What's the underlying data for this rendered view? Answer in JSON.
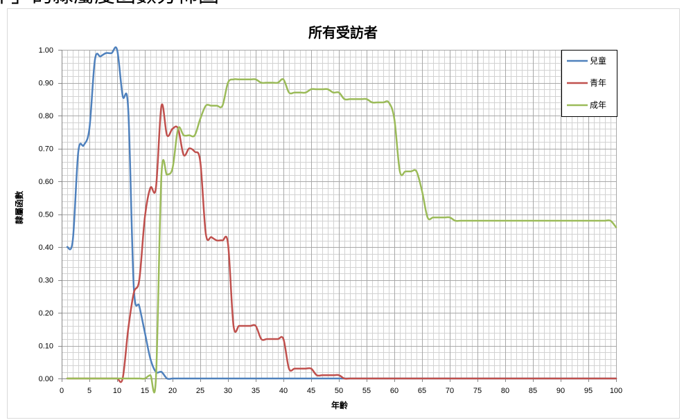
{
  "caption": "年」的隸屬度函數分佈圖",
  "chart_data": {
    "type": "line",
    "title": "所有受訪者",
    "xlabel": "年齡",
    "ylabel": "隸屬函數",
    "xlim": [
      0,
      100
    ],
    "ylim": [
      0,
      1
    ],
    "x_ticks": [
      "0",
      "5",
      "10",
      "15",
      "20",
      "25",
      "30",
      "35",
      "40",
      "45",
      "50",
      "55",
      "60",
      "65",
      "70",
      "75",
      "80",
      "85",
      "90",
      "95",
      "100"
    ],
    "y_ticks": [
      "0.00",
      "0.10",
      "0.20",
      "0.30",
      "0.40",
      "0.50",
      "0.60",
      "0.70",
      "0.80",
      "0.90",
      "1.00"
    ],
    "grid": true,
    "smooth": true,
    "legend": "top-right",
    "x": [
      1,
      2,
      3,
      4,
      5,
      6,
      7,
      8,
      9,
      10,
      11,
      12,
      13,
      14,
      15,
      16,
      17,
      18,
      19,
      20,
      21,
      22,
      23,
      24,
      25,
      26,
      27,
      28,
      29,
      30,
      31,
      32,
      33,
      34,
      35,
      36,
      37,
      38,
      39,
      40,
      41,
      42,
      43,
      44,
      45,
      46,
      47,
      48,
      49,
      50,
      51,
      52,
      53,
      54,
      55,
      56,
      57,
      58,
      59,
      60,
      61,
      62,
      63,
      64,
      65,
      66,
      67,
      68,
      69,
      70,
      71,
      72,
      73,
      74,
      75,
      76,
      77,
      78,
      79,
      80,
      81,
      82,
      83,
      84,
      85,
      86,
      87,
      88,
      89,
      90,
      91,
      92,
      93,
      94,
      95,
      96,
      97,
      98,
      99,
      100
    ],
    "series": [
      {
        "name": "兒童",
        "color": "#4F81BD",
        "values": [
          0.4,
          0.42,
          0.69,
          0.71,
          0.76,
          0.97,
          0.98,
          0.99,
          0.99,
          1.0,
          0.86,
          0.82,
          0.28,
          0.22,
          0.14,
          0.06,
          0.02,
          0.02,
          0.0,
          0.0,
          0,
          0,
          0,
          0,
          0,
          0,
          0,
          0,
          0,
          0,
          0,
          0,
          0,
          0,
          0,
          0,
          0,
          0,
          0,
          0,
          0,
          0,
          0,
          0,
          0,
          0,
          0,
          0,
          0,
          0,
          0,
          0,
          0,
          0,
          0,
          0,
          0,
          0,
          0,
          0,
          0,
          0,
          0,
          0,
          0,
          0,
          0,
          0,
          0,
          0,
          0,
          0,
          0,
          0,
          0,
          0,
          0,
          0,
          0,
          0,
          0,
          0,
          0,
          0,
          0,
          0,
          0,
          0,
          0,
          0,
          0,
          0,
          0,
          0,
          0,
          0,
          0,
          0,
          0,
          0
        ]
      },
      {
        "name": "青年",
        "color": "#C0504D",
        "values": [
          0,
          0,
          0,
          0,
          0,
          0,
          0,
          0,
          0,
          0,
          0,
          0.15,
          0.26,
          0.3,
          0.49,
          0.58,
          0.58,
          0.83,
          0.74,
          0.76,
          0.76,
          0.68,
          0.7,
          0.69,
          0.66,
          0.44,
          0.43,
          0.42,
          0.42,
          0.41,
          0.16,
          0.16,
          0.16,
          0.16,
          0.16,
          0.12,
          0.12,
          0.12,
          0.12,
          0.12,
          0.03,
          0.03,
          0.03,
          0.03,
          0.03,
          0.01,
          0.01,
          0.01,
          0.01,
          0.01,
          0,
          0,
          0,
          0,
          0,
          0,
          0,
          0,
          0,
          0,
          0,
          0,
          0,
          0,
          0,
          0,
          0,
          0,
          0,
          0,
          0,
          0,
          0,
          0,
          0,
          0,
          0,
          0,
          0,
          0,
          0,
          0,
          0,
          0,
          0,
          0,
          0,
          0,
          0,
          0,
          0,
          0,
          0,
          0,
          0,
          0,
          0,
          0,
          0,
          0
        ]
      },
      {
        "name": "成年",
        "color": "#9BBB59",
        "values": [
          0,
          0,
          0,
          0,
          0,
          0,
          0,
          0,
          0,
          0,
          0,
          0,
          0,
          0,
          0,
          0.01,
          0,
          0.62,
          0.62,
          0.64,
          0.76,
          0.74,
          0.74,
          0.74,
          0.79,
          0.83,
          0.83,
          0.83,
          0.83,
          0.9,
          0.91,
          0.91,
          0.91,
          0.91,
          0.91,
          0.9,
          0.9,
          0.9,
          0.9,
          0.91,
          0.87,
          0.87,
          0.87,
          0.87,
          0.88,
          0.88,
          0.88,
          0.88,
          0.87,
          0.87,
          0.85,
          0.85,
          0.85,
          0.85,
          0.85,
          0.84,
          0.84,
          0.84,
          0.84,
          0.79,
          0.63,
          0.63,
          0.63,
          0.63,
          0.57,
          0.49,
          0.49,
          0.49,
          0.49,
          0.49,
          0.48,
          0.48,
          0.48,
          0.48,
          0.48,
          0.48,
          0.48,
          0.48,
          0.48,
          0.48,
          0.48,
          0.48,
          0.48,
          0.48,
          0.48,
          0.48,
          0.48,
          0.48,
          0.48,
          0.48,
          0.48,
          0.48,
          0.48,
          0.48,
          0.48,
          0.48,
          0.48,
          0.48,
          0.48,
          0.46
        ]
      }
    ]
  }
}
